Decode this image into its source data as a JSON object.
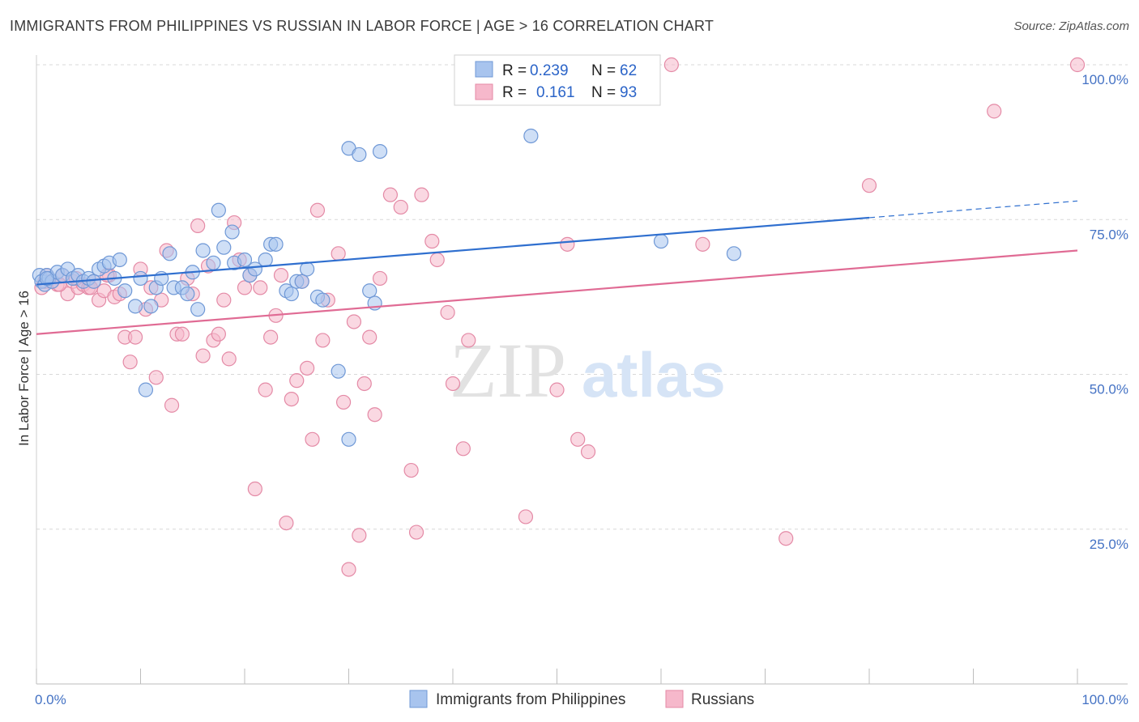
{
  "title": "IMMIGRANTS FROM PHILIPPINES VS RUSSIAN IN LABOR FORCE | AGE > 16 CORRELATION CHART",
  "source": "Source: ZipAtlas.com",
  "watermark": {
    "zip": "ZIP",
    "atlas": "atlas"
  },
  "colors": {
    "blue_fill": "#a8c4ee",
    "blue_stroke": "#6f98d6",
    "blue_line": "#2f6fcf",
    "pink_fill": "#f6b8cb",
    "pink_stroke": "#e48aa6",
    "pink_line": "#e06b94",
    "axis_text": "#4472c4",
    "grid": "#d8d8d8"
  },
  "legend": {
    "series": [
      {
        "r_label": "R =",
        "r_value": "0.239",
        "n_label": "N =",
        "n_value": "62"
      },
      {
        "r_label": "R =",
        "r_value": "0.161",
        "n_label": "N =",
        "n_value": "93"
      }
    ]
  },
  "chart_data": {
    "type": "scatter",
    "xlabel": "",
    "ylabel": "In Labor Force | Age > 16",
    "xlim": [
      0,
      100
    ],
    "ylim": [
      0,
      100
    ],
    "x_tick_labels": [
      "0.0%",
      "100.0%"
    ],
    "y_ticks": [
      25,
      50,
      75,
      100
    ],
    "y_tick_labels": [
      "25.0%",
      "50.0%",
      "75.0%",
      "100.0%"
    ],
    "grid": true,
    "legend_position": "top-center",
    "series": [
      {
        "name": "Immigrants from Philippines",
        "color": "blue",
        "trend": {
          "x": [
            0,
            80
          ],
          "y": [
            64.5,
            75.3
          ],
          "dashed_to": [
            100,
            78.0
          ]
        },
        "points": [
          [
            0.3,
            66
          ],
          [
            0.5,
            65
          ],
          [
            0.8,
            64.5
          ],
          [
            1,
            66
          ],
          [
            1.2,
            65.5
          ],
          [
            1.5,
            65
          ],
          [
            2,
            66.5
          ],
          [
            2.5,
            66
          ],
          [
            3,
            67
          ],
          [
            3.5,
            65.5
          ],
          [
            4,
            66
          ],
          [
            4.5,
            65
          ],
          [
            5,
            65.5
          ],
          [
            5.5,
            65
          ],
          [
            6,
            67
          ],
          [
            6.5,
            67.5
          ],
          [
            7,
            68
          ],
          [
            7.5,
            65.5
          ],
          [
            8,
            68.5
          ],
          [
            8.5,
            63.5
          ],
          [
            9.5,
            61
          ],
          [
            10,
            65.5
          ],
          [
            10.5,
            47.5
          ],
          [
            11,
            61
          ],
          [
            11.5,
            64
          ],
          [
            12,
            65.5
          ],
          [
            12.8,
            69.5
          ],
          [
            13.2,
            64
          ],
          [
            14,
            64
          ],
          [
            14.5,
            63
          ],
          [
            15,
            66.5
          ],
          [
            15.5,
            60.5
          ],
          [
            16,
            70
          ],
          [
            17,
            68
          ],
          [
            17.5,
            76.5
          ],
          [
            18,
            70.5
          ],
          [
            18.8,
            73
          ],
          [
            19,
            68
          ],
          [
            20,
            68.5
          ],
          [
            20.5,
            66
          ],
          [
            21,
            67
          ],
          [
            22,
            68.5
          ],
          [
            22.5,
            71
          ],
          [
            23,
            71
          ],
          [
            24,
            63.5
          ],
          [
            24.5,
            63
          ],
          [
            25,
            65
          ],
          [
            25.5,
            65
          ],
          [
            26,
            67
          ],
          [
            27,
            62.5
          ],
          [
            27.5,
            62
          ],
          [
            29,
            50.5
          ],
          [
            30,
            39.5
          ],
          [
            30,
            86.5
          ],
          [
            31,
            85.5
          ],
          [
            32,
            63.5
          ],
          [
            32.5,
            61.5
          ],
          [
            33,
            86
          ],
          [
            47.5,
            88.5
          ],
          [
            60,
            71.5
          ],
          [
            67,
            69.5
          ],
          [
            1,
            65.5
          ]
        ]
      },
      {
        "name": "Russians",
        "color": "pink",
        "trend": {
          "x": [
            0,
            100
          ],
          "y": [
            56.5,
            70.0
          ]
        },
        "points": [
          [
            0.5,
            64
          ],
          [
            1,
            66
          ],
          [
            1.5,
            65
          ],
          [
            2,
            64.5
          ],
          [
            2.5,
            66
          ],
          [
            3,
            63
          ],
          [
            3.5,
            65
          ],
          [
            4,
            64
          ],
          [
            4.5,
            64.5
          ],
          [
            5,
            64
          ],
          [
            5.5,
            65
          ],
          [
            6,
            62
          ],
          [
            6.5,
            63.5
          ],
          [
            7,
            66
          ],
          [
            7.5,
            62.5
          ],
          [
            8,
            63
          ],
          [
            8.5,
            56
          ],
          [
            9,
            52
          ],
          [
            9.5,
            56
          ],
          [
            10,
            67
          ],
          [
            10.5,
            60.5
          ],
          [
            11,
            64
          ],
          [
            11.5,
            49.5
          ],
          [
            12,
            62
          ],
          [
            12.5,
            70
          ],
          [
            13,
            45
          ],
          [
            13.5,
            56.5
          ],
          [
            14,
            56.5
          ],
          [
            14.5,
            65.5
          ],
          [
            15,
            63
          ],
          [
            15.5,
            74
          ],
          [
            16,
            53
          ],
          [
            16.5,
            67.5
          ],
          [
            17,
            55.5
          ],
          [
            17.5,
            56.5
          ],
          [
            18,
            62
          ],
          [
            18.5,
            52.5
          ],
          [
            19,
            74.5
          ],
          [
            19.5,
            68.5
          ],
          [
            20,
            64
          ],
          [
            20.5,
            66
          ],
          [
            21,
            31.5
          ],
          [
            21.5,
            64
          ],
          [
            22,
            47.5
          ],
          [
            22.5,
            56
          ],
          [
            23,
            59.5
          ],
          [
            23.5,
            66
          ],
          [
            24,
            26
          ],
          [
            24.5,
            46
          ],
          [
            25,
            49
          ],
          [
            25.5,
            65
          ],
          [
            26,
            51
          ],
          [
            26.5,
            39.5
          ],
          [
            27,
            76.5
          ],
          [
            27.5,
            55.5
          ],
          [
            28,
            62
          ],
          [
            29,
            69.5
          ],
          [
            29.5,
            45.5
          ],
          [
            30,
            18.5
          ],
          [
            30.5,
            58.5
          ],
          [
            31,
            24
          ],
          [
            31.5,
            48.5
          ],
          [
            32,
            56
          ],
          [
            32.5,
            43.5
          ],
          [
            33,
            65.5
          ],
          [
            34,
            79
          ],
          [
            35,
            77
          ],
          [
            36,
            34.5
          ],
          [
            36.5,
            24.5
          ],
          [
            37,
            79
          ],
          [
            38,
            71.5
          ],
          [
            38.5,
            68.5
          ],
          [
            39.5,
            60
          ],
          [
            40,
            48.5
          ],
          [
            41,
            38
          ],
          [
            41.5,
            55.5
          ],
          [
            47,
            27
          ],
          [
            50,
            47.5
          ],
          [
            51,
            71
          ],
          [
            52,
            39.5
          ],
          [
            53,
            37.5
          ],
          [
            59,
            100
          ],
          [
            61,
            100
          ],
          [
            64,
            71
          ],
          [
            72,
            23.5
          ],
          [
            80,
            80.5
          ],
          [
            92,
            92.5
          ],
          [
            100,
            100
          ],
          [
            0.8,
            65
          ],
          [
            2.2,
            64.5
          ],
          [
            3.8,
            65.5
          ],
          [
            5.2,
            64
          ],
          [
            6.8,
            66
          ]
        ]
      }
    ]
  }
}
